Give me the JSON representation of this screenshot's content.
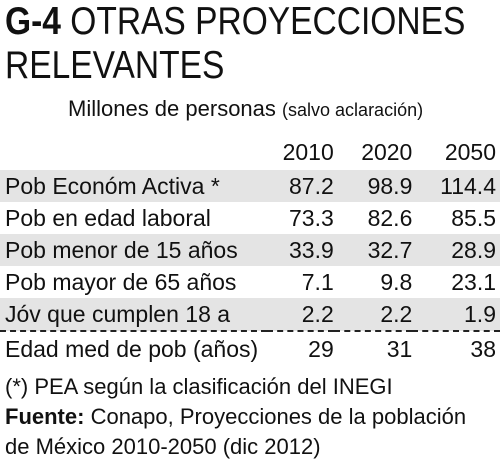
{
  "graphic": {
    "code": "G-4",
    "title_line1": "OTRAS PROYECCIONES",
    "title_line2": "RELEVANTES"
  },
  "subtitle": {
    "main": "Millones de personas",
    "note": "(salvo aclaración)"
  },
  "table": {
    "columns": [
      "2010",
      "2020",
      "2050"
    ],
    "rows": [
      {
        "label": "Pob Económ Activa *",
        "values": [
          "87.2",
          "98.9",
          "114.4"
        ]
      },
      {
        "label": "Pob en edad laboral",
        "values": [
          "73.3",
          "82.6",
          "85.5"
        ]
      },
      {
        "label": "Pob menor de 15 años",
        "values": [
          "33.9",
          "32.7",
          "28.9"
        ]
      },
      {
        "label": "Pob mayor de 65 años",
        "values": [
          "7.1",
          "9.8",
          "23.1"
        ]
      },
      {
        "label": "Jóv que cumplen 18 a",
        "values": [
          "2.2",
          "2.2",
          "1.9"
        ]
      },
      {
        "label": "Edad med de pob (años)",
        "values": [
          "29",
          "31",
          "38"
        ]
      }
    ]
  },
  "footer": {
    "note": "(*) PEA según la clasificación del INEGI",
    "source_label": "Fuente:",
    "source_text": "Conapo, Proyecciones de la población",
    "source_text2": "de México 2010-2050 (dic 2012)"
  }
}
